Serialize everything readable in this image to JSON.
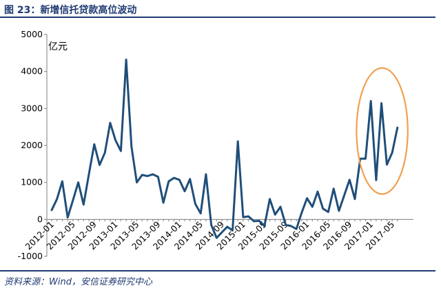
{
  "figure": {
    "title": "图 23：新增信托贷款高位波动",
    "source": "资料来源：Wind，安信证券研究中心"
  },
  "colors": {
    "line": "#1f4e79",
    "highlight": "#f0a050",
    "rule": "#1f3a73"
  },
  "chart_data": {
    "type": "line",
    "unit_label": "亿元",
    "ylim": [
      -1000,
      5000
    ],
    "y_ticks": [
      "-1000",
      "0",
      "1000",
      "2000",
      "3000",
      "4000",
      "5000"
    ],
    "x_tick_labels": [
      "2012-01",
      "2012-05",
      "2012-09",
      "2013-01",
      "2013-05",
      "2013-09",
      "2014-01",
      "2014-05",
      "2014-09",
      "2015-01",
      "2015-05",
      "2015-09",
      "2016-01",
      "2016-05",
      "2016-09",
      "2017-01",
      "2017-05"
    ],
    "grid": false,
    "legend": "none",
    "highlight": "ellipse around 2016-12 to 2017-06",
    "x": [
      "2012-01",
      "2012-02",
      "2012-03",
      "2012-04",
      "2012-05",
      "2012-06",
      "2012-07",
      "2012-08",
      "2012-09",
      "2012-10",
      "2012-11",
      "2012-12",
      "2013-01",
      "2013-02",
      "2013-03",
      "2013-04",
      "2013-05",
      "2013-06",
      "2013-07",
      "2013-08",
      "2013-09",
      "2013-10",
      "2013-11",
      "2013-12",
      "2014-01",
      "2014-02",
      "2014-03",
      "2014-04",
      "2014-05",
      "2014-06",
      "2014-07",
      "2014-08",
      "2014-09",
      "2014-10",
      "2014-11",
      "2014-12",
      "2015-01",
      "2015-02",
      "2015-03",
      "2015-04",
      "2015-05",
      "2015-06",
      "2015-07",
      "2015-08",
      "2015-09",
      "2015-10",
      "2015-11",
      "2015-12",
      "2016-01",
      "2016-02",
      "2016-03",
      "2016-04",
      "2016-05",
      "2016-06",
      "2016-07",
      "2016-08",
      "2016-09",
      "2016-10",
      "2016-11",
      "2016-12",
      "2017-01",
      "2017-02",
      "2017-03",
      "2017-04",
      "2017-05",
      "2017-06"
    ],
    "values": [
      250,
      550,
      1030,
      50,
      520,
      1000,
      400,
      1220,
      2030,
      1470,
      1800,
      2610,
      2140,
      1850,
      4320,
      1970,
      1000,
      1200,
      1170,
      1220,
      1150,
      450,
      1030,
      1120,
      1070,
      760,
      1090,
      420,
      160,
      1220,
      -150,
      -500,
      -350,
      -200,
      -300,
      2110,
      60,
      80,
      -50,
      -40,
      -180,
      550,
      130,
      340,
      -150,
      -180,
      -260,
      180,
      570,
      340,
      750,
      290,
      200,
      830,
      230,
      650,
      1070,
      550,
      1640,
      1640,
      3200,
      1060,
      3140,
      1480,
      1800,
      2480
    ]
  }
}
